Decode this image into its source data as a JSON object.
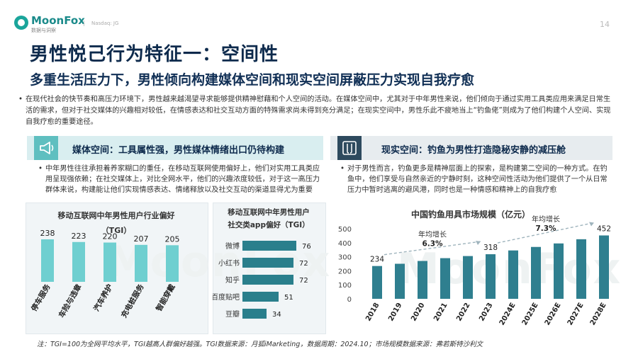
{
  "brand": {
    "name": "MoonFox",
    "tagline": "数据与洞察",
    "partner": "Nasdaq: JG"
  },
  "page_number": "14",
  "title": "男性悦己行为特征一：空间性",
  "subtitle": "多重生活压力下，男性倾向构建媒体空间和现实空间屏蔽压力实现自我疗愈",
  "intro": "在现代社会的快节奏和高压力环境下，男性越来越渴望寻求能够提供精神慰藉和个人空间的活动。在媒体空间中，尤其对于中年男性来说，他们倾向于通过实用工具类应用来满足日常生活的需求，但对于社交媒体的兴趣相对较低，在情感表达和社交互动方面的特殊需求尚未得到充分满足；在现实空间中，男性乐此不疲地当上“钓鱼佬”则成为了他们构建个人空间、实现自我疗愈的重要途径。",
  "left_section": {
    "banner": "媒体空间：工具属性强，男性媒体情绪出口仍待构建",
    "body": "中年男性往往承担着养家糊口的重任，在移动互联网使用偏好上，他们对实用工具类应用呈现强依赖；在社交媒体上，对比全网水平，他们的兴趣浓度较低，对于这一高压力群体来说，构建能让他们实现情感表达、情绪释放以及社交互动的渠道显得尤为重要"
  },
  "right_section": {
    "banner": "现实空间：钓鱼为男性打造隐秘安静的减压舱",
    "body": "对于男性而言，钓鱼更多是精神层面上的探索，是构建第二空间的一种方式。在钓鱼中，他们享受与自然亲近的宁静时刻，这种空间性活动为他们提供了一个从日常压力中暂时逃离的避风港，同时也是一种情感和精神上的自我疗愈"
  },
  "chart_data": [
    {
      "type": "bar",
      "title": "移动互联网中年男性用户行业偏好",
      "subtitle": "（TGI）",
      "categories": [
        "停车服务",
        "车险与违章",
        "汽车养护",
        "充电桩服务",
        "智能穿戴"
      ],
      "values": [
        238,
        223,
        220,
        207,
        205
      ],
      "color": "#6fcfd0"
    },
    {
      "type": "bar",
      "orientation": "horizontal",
      "title": "移动互联网中年男性用户",
      "subtitle": "社交类app偏好（TGI）",
      "categories": [
        "微博",
        "小红书",
        "知乎",
        "百度贴吧",
        "豆瓣"
      ],
      "values": [
        76,
        72,
        72,
        51,
        34
      ],
      "color": "#2a7f8c",
      "xlim": [
        0,
        80
      ]
    },
    {
      "type": "bar",
      "title": "中国钓鱼用具市场规模（亿元）",
      "categories": [
        "2018",
        "2019",
        "2020",
        "2021",
        "2022",
        "2023",
        "2024E",
        "2025E",
        "2026E",
        "2027E",
        "2028E"
      ],
      "values": [
        234,
        250,
        270,
        290,
        305,
        318,
        345,
        370,
        395,
        425,
        452
      ],
      "labeled": {
        "0": "234",
        "5": "318",
        "10": "452"
      },
      "ylim": [
        0,
        500
      ],
      "yticks": [
        0,
        100,
        200,
        300,
        400,
        500
      ],
      "color": "#2f7f8f",
      "annotations": [
        {
          "label": "年均增长",
          "value": "6.3%"
        },
        {
          "label": "年均增长",
          "value": "7.3%"
        }
      ]
    }
  ],
  "source": "注：TGI=100为全网平均水平，TGI越高人群偏好越强。TGI数据来源：月狐iMarketing，数据周期：2024.10；市场规模数据来源：弗若斯特沙利文",
  "watermark": "MoonFox",
  "colors": {
    "teal": "#1aa59b",
    "navy": "#0d2a4c",
    "banner_left": "#d9eef0",
    "banner_right": "#e7ecef"
  }
}
